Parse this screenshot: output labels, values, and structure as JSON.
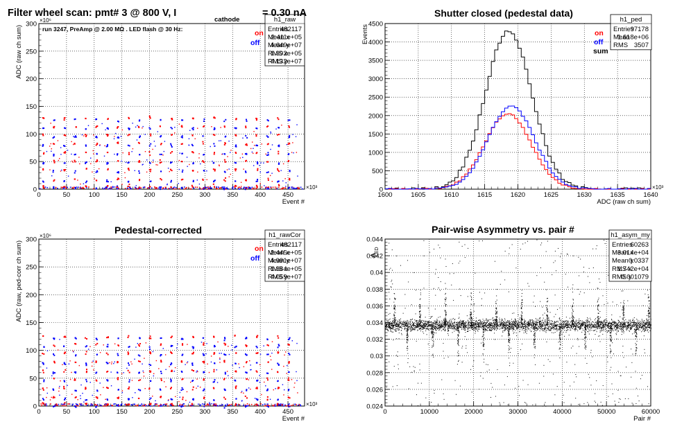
{
  "colors": {
    "on": "#ff0000",
    "off": "#0000ff",
    "sum": "#000000",
    "frame": "#000000",
    "grid": "#000000"
  },
  "chart_data": [
    {
      "type": "scatter",
      "title": "Filter wheel scan: pmt#   3 @   800 V, I",
      "title_sub": "cathode",
      "title_tail": "= 0.30 nA",
      "ylabel": "ADC (raw ch sum)",
      "xlabel": "Event #",
      "x_multiplier": "×10³",
      "y_multiplier": "×10⁶",
      "annotation": "run 3247, PreAmp @ 2.00 MΩ . LED flash @   30 Hz:",
      "xlim": [
        0,
        480
      ],
      "ylim": [
        0,
        300
      ],
      "xticks": [
        0,
        50,
        100,
        150,
        200,
        250,
        300,
        350,
        400,
        450
      ],
      "yticks": [
        0,
        50,
        100,
        150,
        200,
        250,
        300
      ],
      "legend": [
        "on",
        "off"
      ],
      "levels": [
        128,
        113,
        98,
        82,
        66,
        50,
        35,
        17,
        5
      ],
      "stats": {
        "name": "h1_raw",
        "rows": [
          [
            "Entries",
            "482117"
          ],
          [
            "Mean x",
            "2.411e+05"
          ],
          [
            "Mean y",
            "4.649e+07"
          ],
          [
            "RMS x",
            "1.392e+05"
          ],
          [
            "RMS y",
            "4.132e+07"
          ]
        ]
      }
    },
    {
      "type": "histogram",
      "title": "Shutter closed (pedestal data)",
      "ylabel": "Events",
      "xlabel": "ADC (raw ch sum)",
      "x_multiplier": "×10³",
      "xlim": [
        1600,
        1640
      ],
      "ylim": [
        0,
        4500
      ],
      "xticks": [
        1600,
        1605,
        1610,
        1615,
        1620,
        1625,
        1630,
        1635,
        1640
      ],
      "yticks": [
        0,
        500,
        1000,
        1500,
        2000,
        2500,
        3000,
        3500,
        4000,
        4500
      ],
      "legend": [
        "on",
        "off",
        "sum"
      ],
      "series": [
        {
          "name": "sum",
          "mean": 1618.6,
          "sigma": 3.51,
          "peak": 4300
        },
        {
          "name": "on",
          "mean": 1618.5,
          "sigma": 3.5,
          "peak": 2050
        },
        {
          "name": "off",
          "mean": 1619.0,
          "sigma": 3.5,
          "peak": 2260
        }
      ],
      "stats": {
        "name": "h1_ped",
        "rows": [
          [
            "Entries",
            "97178"
          ],
          [
            "Mean",
            "1.618e+06"
          ],
          [
            "RMS",
            "3507"
          ]
        ]
      }
    },
    {
      "type": "scatter",
      "title": "Pedestal-corrected",
      "ylabel": "ADC (raw, ped-corr ch sum)",
      "xlabel": "Event #",
      "x_multiplier": "×10³",
      "y_multiplier": "×10⁶",
      "xlim": [
        0,
        480
      ],
      "ylim": [
        0,
        300
      ],
      "xticks": [
        0,
        50,
        100,
        150,
        200,
        250,
        300,
        350,
        400,
        450
      ],
      "yticks": [
        0,
        50,
        100,
        150,
        200,
        250,
        300
      ],
      "legend": [
        "on",
        "off"
      ],
      "levels": [
        124,
        110,
        95,
        79,
        63,
        48,
        32,
        15,
        3
      ],
      "stats": {
        "name": "h1_rawCor",
        "rows": [
          [
            "Entries",
            "482117"
          ],
          [
            "Mean x",
            "2.445e+05"
          ],
          [
            "Mean y",
            "4.991e+07"
          ],
          [
            "RMS x",
            "1.384e+05"
          ],
          [
            "RMS y",
            "4.059e+07"
          ]
        ]
      }
    },
    {
      "type": "scatter",
      "title": "Pair-wise Asymmetry vs. pair #",
      "ylabel": "A",
      "ylabel_sub": "LED",
      "xlabel": "Pair #",
      "xlim": [
        0,
        60000
      ],
      "ylim": [
        0.024,
        0.044
      ],
      "xticks": [
        0,
        10000,
        20000,
        30000,
        40000,
        50000,
        60000
      ],
      "yticks": [
        0.024,
        0.026,
        0.028,
        0.03,
        0.032,
        0.034,
        0.036,
        0.038,
        0.04,
        0.042,
        0.044
      ],
      "ytick_labels": [
        "0.024",
        "0.026",
        "0.028",
        "0.03",
        "0.032",
        "0.034",
        "0.036",
        "0.038",
        "0.04",
        "0.042",
        "0.044"
      ],
      "band_center": 0.0337,
      "stats": {
        "name": "h1_asym_my",
        "rows": [
          [
            "Entries",
            "60263"
          ],
          [
            "Mean x",
            "3.014e+04"
          ],
          [
            "Mean y",
            "0.0337"
          ],
          [
            "RMS x",
            "1.742e+04"
          ],
          [
            "RMS y",
            "0.001079"
          ]
        ]
      }
    }
  ]
}
